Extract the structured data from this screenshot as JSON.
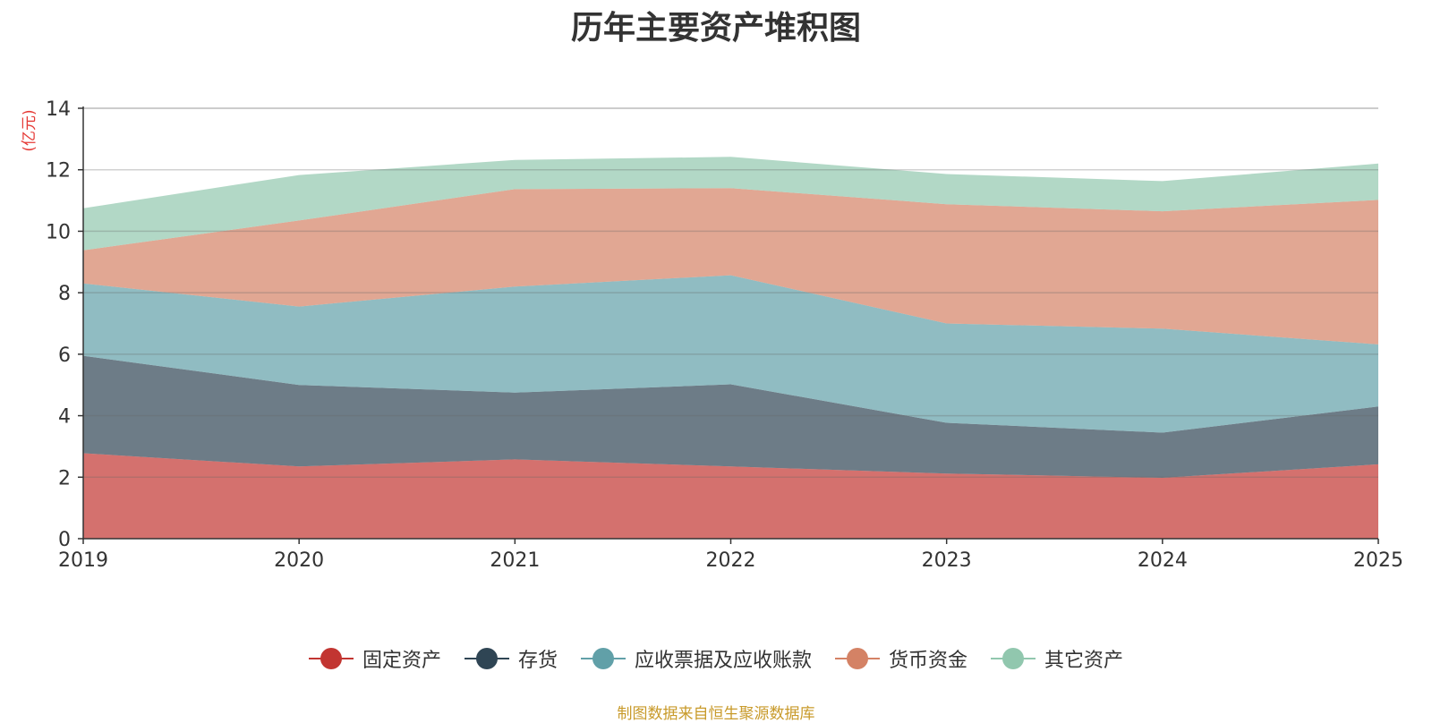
{
  "chart_data": {
    "type": "area",
    "stacked": true,
    "title": "历年主要资产堆积图",
    "ylabel": "(亿元)",
    "xlabel": "",
    "x": [
      "2019",
      "2020",
      "2021",
      "2022",
      "2023",
      "2024",
      "2025"
    ],
    "ylim": [
      0,
      14
    ],
    "yticks": [
      0,
      2,
      4,
      6,
      8,
      10,
      12,
      14
    ],
    "grid": true,
    "legend_position": "bottom",
    "series": [
      {
        "name": "固定资产",
        "color": "#c23531",
        "values": [
          2.78,
          2.35,
          2.58,
          2.35,
          2.12,
          1.98,
          2.42
        ]
      },
      {
        "name": "存货",
        "color": "#2f4554",
        "values": [
          3.17,
          2.65,
          2.17,
          2.67,
          1.65,
          1.47,
          1.88
        ]
      },
      {
        "name": "应收票据及应收账款",
        "color": "#61a0a8",
        "values": [
          2.35,
          2.55,
          3.45,
          3.55,
          3.23,
          3.38,
          2.02
        ]
      },
      {
        "name": "货币资金",
        "color": "#d48265",
        "values": [
          1.08,
          2.8,
          3.17,
          2.83,
          3.88,
          3.82,
          4.7
        ]
      },
      {
        "name": "其它资产",
        "color": "#91c7ae",
        "values": [
          1.37,
          1.48,
          0.95,
          1.02,
          0.98,
          0.98,
          1.18
        ]
      }
    ]
  },
  "legend_items": [
    {
      "label": "固定资产",
      "color": "#c23531"
    },
    {
      "label": "存货",
      "color": "#2f4554"
    },
    {
      "label": "应收票据及应收账款",
      "color": "#61a0a8"
    },
    {
      "label": "货币资金",
      "color": "#d48265"
    },
    {
      "label": "其它资产",
      "color": "#91c7ae"
    }
  ],
  "source_note": "制图数据来自恒生聚源数据库"
}
